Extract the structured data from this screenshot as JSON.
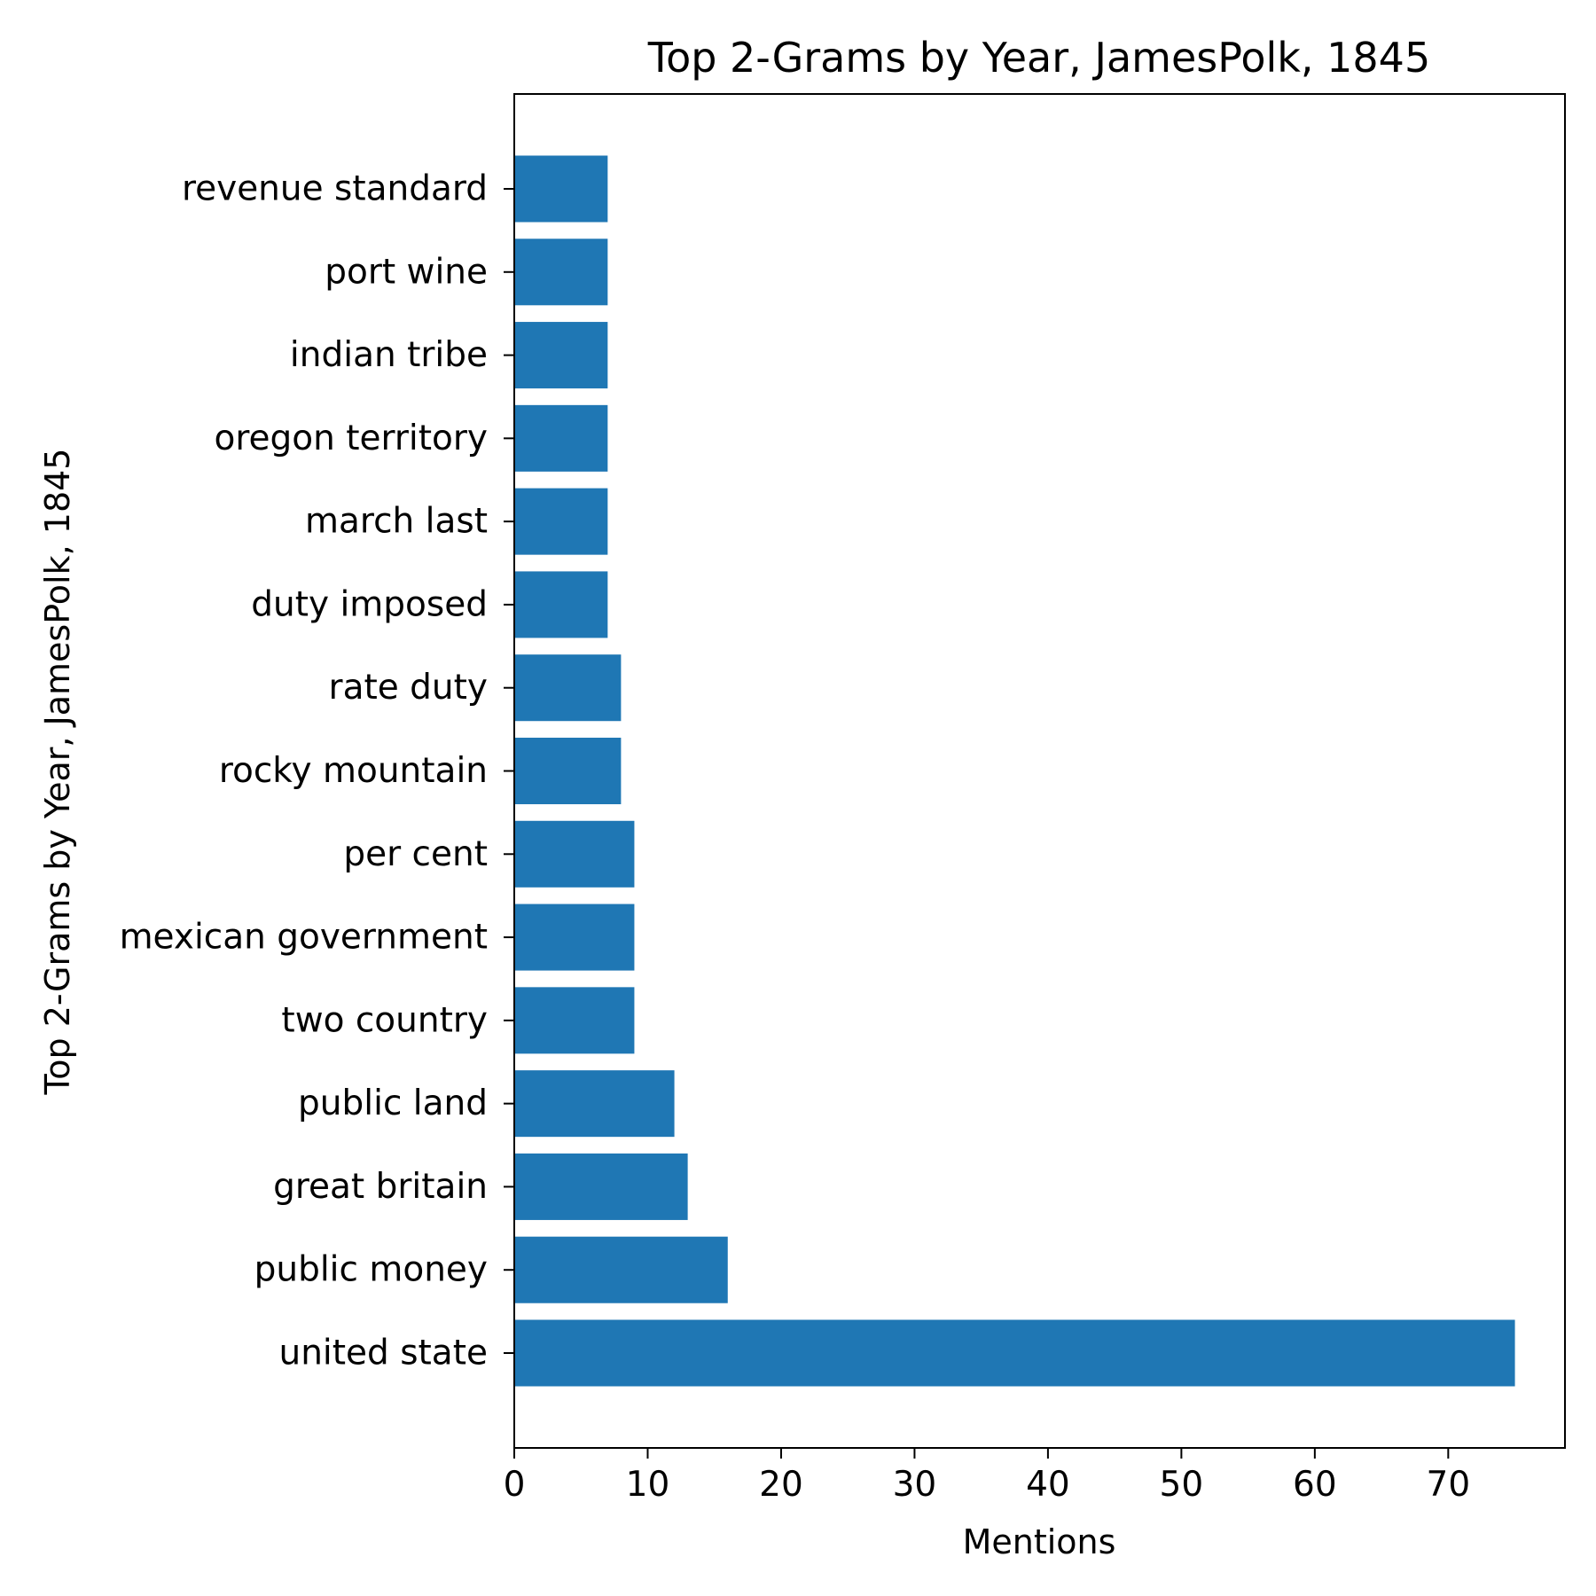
{
  "chart_data": {
    "type": "bar",
    "orientation": "horizontal",
    "title": "Top 2-Grams by Year, JamesPolk, 1845",
    "xlabel": "Mentions",
    "ylabel": "Top 2-Grams by Year, JamesPolk, 1845",
    "categories": [
      "united state",
      "public money",
      "great britain",
      "public land",
      "two country",
      "mexican government",
      "per cent",
      "rocky mountain",
      "rate duty",
      "duty imposed",
      "march last",
      "oregon territory",
      "indian tribe",
      "port wine",
      "revenue standard"
    ],
    "values": [
      75,
      16,
      13,
      12,
      9,
      9,
      9,
      8,
      8,
      7,
      7,
      7,
      7,
      7,
      7
    ],
    "xlim": [
      0,
      78.75
    ],
    "xticks": [
      0,
      10,
      20,
      30,
      40,
      50,
      60,
      70
    ],
    "grid": false,
    "bar_color": "#1f77b4"
  }
}
